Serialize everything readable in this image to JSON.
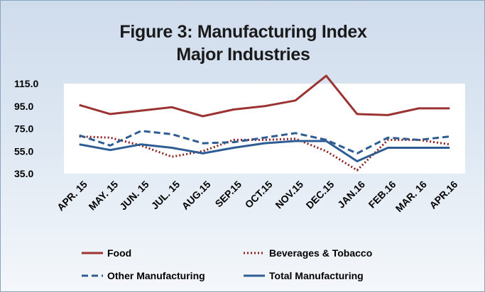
{
  "chart_data": {
    "type": "line",
    "title": "Figure 3:   Manufacturing Index",
    "subtitle": "Major Industries",
    "categories": [
      "APR. 15",
      "MAY. 15",
      "JUN. 15",
      "JUL. 15",
      "AUG.15",
      "SEP.15",
      "OCT.15",
      "NOV.15",
      "DEC.15",
      "JAN.16",
      "FEB.16",
      "MAR. 16",
      "APR.16"
    ],
    "ylim": [
      35,
      115
    ],
    "yticks": [
      "115.0",
      "95.0",
      "75.0",
      "55.0",
      "35.0"
    ],
    "grid": false,
    "legend_position": "bottom",
    "series": [
      {
        "name": "Food",
        "color": "#9b3333",
        "dash": "solid",
        "values": [
          96,
          88,
          91,
          94,
          86,
          92,
          95,
          100,
          122,
          88,
          87,
          93,
          93
        ]
      },
      {
        "name": "Beverages & Tobacco",
        "color": "#8b2020",
        "dash": "dotted",
        "values": [
          68,
          67,
          60,
          50,
          55,
          65,
          65,
          66,
          55,
          38,
          65,
          65,
          61
        ]
      },
      {
        "name": "Other Manufacturing",
        "color": "#2e5c94",
        "dash": "dashed",
        "values": [
          69,
          60,
          73,
          70,
          62,
          63,
          67,
          71,
          65,
          53,
          67,
          65,
          68
        ]
      },
      {
        "name": "Total Manufacturing",
        "color": "#2e5c94",
        "dash": "solid",
        "values": [
          61,
          56,
          61,
          58,
          53,
          58,
          62,
          64,
          64,
          46,
          58,
          58,
          58
        ]
      }
    ]
  }
}
